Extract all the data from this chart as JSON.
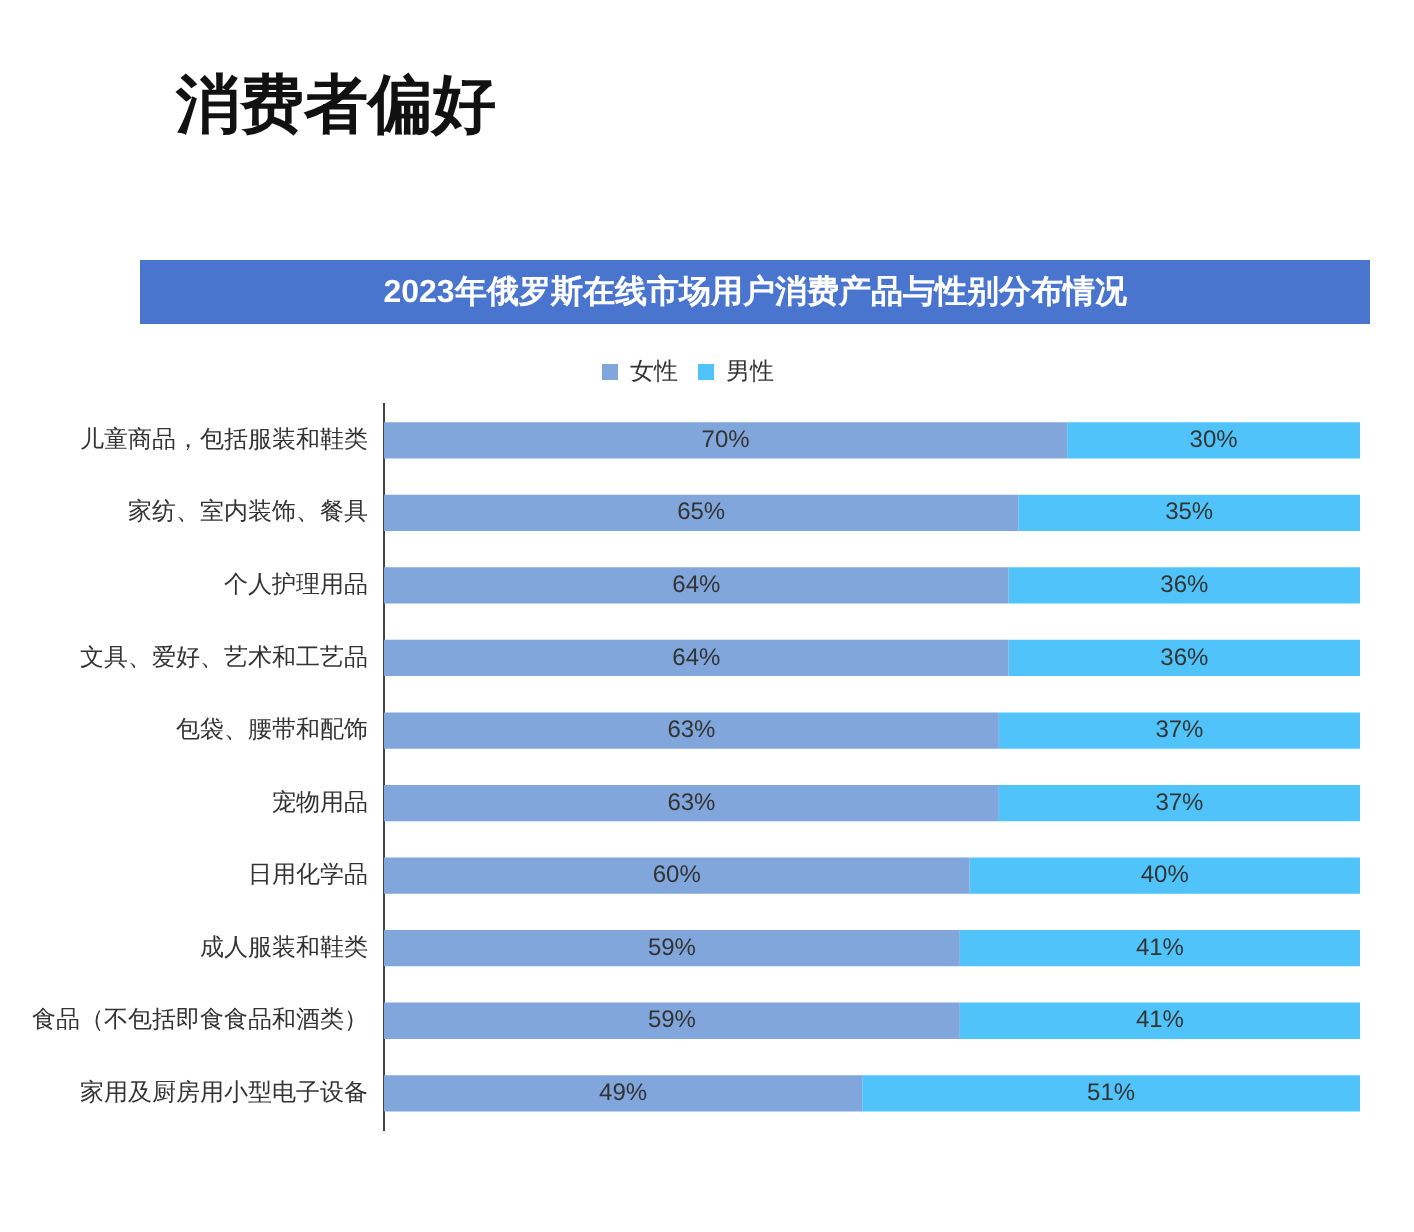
{
  "chart_data": {
    "type": "bar",
    "orientation": "horizontal",
    "stacked": true,
    "title": "消费者偏好",
    "subtitle": "2023年俄罗斯在线市场用户消费产品与性别分布情况",
    "categories": [
      "儿童商品，包括服装和鞋类",
      "家纺、室内装饰、餐具",
      "个人护理用品",
      "文具、爱好、艺术和工艺品",
      "包袋、腰带和配饰",
      "宠物用品",
      "日用化学品",
      "成人服装和鞋类",
      "食品（不包括即食食品和酒类）",
      "家用及厨房用小型电子设备"
    ],
    "series": [
      {
        "name": "女性",
        "color": "#80a6dc",
        "values": [
          70,
          65,
          64,
          64,
          63,
          63,
          60,
          59,
          59,
          49
        ],
        "value_labels": [
          "70%",
          "65%",
          "64%",
          "64%",
          "63%",
          "63%",
          "60%",
          "59%",
          "59%",
          "49%"
        ]
      },
      {
        "name": "男性",
        "color": "#50c4fa",
        "values": [
          30,
          35,
          36,
          36,
          37,
          37,
          40,
          41,
          41,
          51
        ],
        "value_labels": [
          "30%",
          "35%",
          "36%",
          "36%",
          "37%",
          "37%",
          "40%",
          "41%",
          "41%",
          "51%"
        ]
      }
    ],
    "xlim": [
      0,
      100
    ],
    "tick_labels": "y",
    "legend": "top",
    "grid": false
  }
}
